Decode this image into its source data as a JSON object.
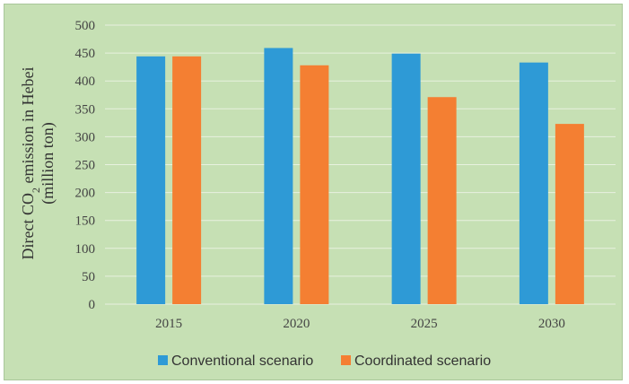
{
  "chart_data": {
    "type": "bar",
    "categories": [
      "2015",
      "2020",
      "2025",
      "2030"
    ],
    "series": [
      {
        "name": "Conventional scenario",
        "color": "#2e9ad6",
        "values": [
          444,
          459,
          449,
          433
        ]
      },
      {
        "name": "Coordinated scenario",
        "color": "#f47f32",
        "values": [
          444,
          428,
          371,
          323
        ]
      }
    ],
    "ylim": [
      0,
      500
    ],
    "yticks": [
      0,
      50,
      100,
      150,
      200,
      250,
      300,
      350,
      400,
      450,
      500
    ],
    "ylabel_line1_prefix": "Direct CO",
    "ylabel_line1_sub": "2",
    "ylabel_line1_suffix": " emission in Hebei",
    "ylabel_line2": "(million ton)",
    "xlabel": "",
    "grid": true,
    "legend_position": "bottom",
    "background": "#c6e0b4",
    "gridline_color": "#e8f1df"
  }
}
